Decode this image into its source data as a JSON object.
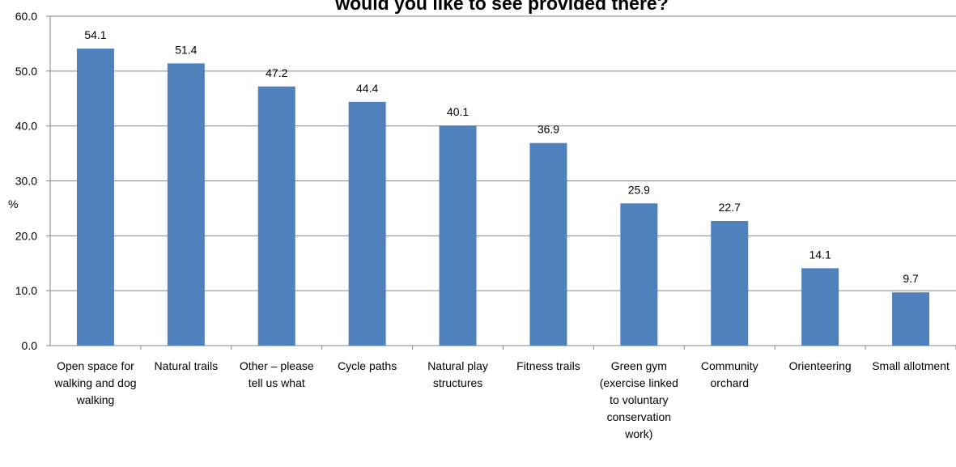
{
  "chart_data": {
    "type": "bar",
    "title": "would you like to see provided there?",
    "y_label": "%",
    "categories": [
      "Open space for walking and dog walking",
      "Natural trails",
      "Other – please tell us what",
      "Cycle paths",
      "Natural play structures",
      "Fitness trails",
      "Green gym (exercise linked to voluntary conservation work)",
      "Community orchard",
      "Orienteering",
      "Small allotment"
    ],
    "values": [
      54.1,
      51.4,
      47.2,
      44.4,
      40.1,
      36.9,
      25.9,
      22.7,
      14.1,
      9.7
    ],
    "color": "#4f81bd",
    "ylim": [
      0,
      60
    ],
    "yticks": [
      {
        "value": 0,
        "label": "0.0"
      },
      {
        "value": 10,
        "label": "10.0"
      },
      {
        "value": 20,
        "label": "20.0"
      },
      {
        "value": 30,
        "label": "30.0"
      },
      {
        "value": 40,
        "label": "40.0"
      },
      {
        "value": 50,
        "label": "50.0"
      },
      {
        "value": 60,
        "label": "60.0"
      }
    ],
    "grid": true
  }
}
